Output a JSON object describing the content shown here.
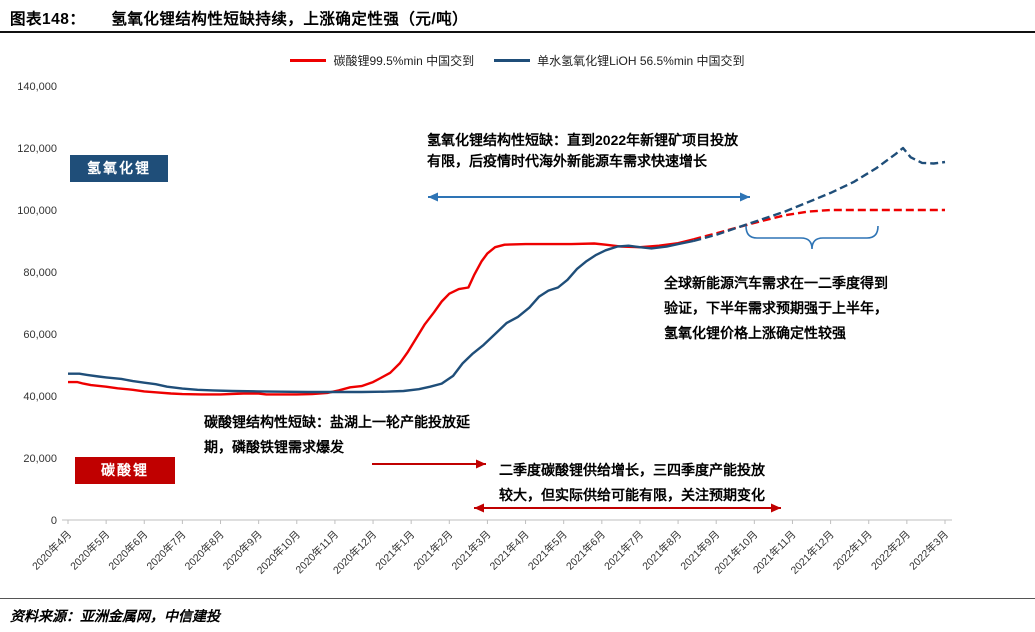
{
  "title": {
    "prefix": "图表148：",
    "text": "氢氧化锂结构性短缺持续，上涨确定性强（元/吨）"
  },
  "legend": [
    {
      "label": "碳酸锂99.5%min 中国交到"
    },
    {
      "label": "单水氢氧化锂LiOH 56.5%min 中国交到"
    }
  ],
  "boxes": {
    "hydroxide": "氢氧化锂",
    "carbonate": "碳酸锂"
  },
  "annotations": {
    "top": "氢氧化锂结构性短缺：直到2022年新锂矿项目投放\n有限，后疫情时代海外新能源车需求快速增长",
    "right": "全球新能源汽车需求在一二季度得到\n验证，下半年需求预期强于上半年，\n氢氧化锂价格上涨确定性较强",
    "carbonate": "碳酸锂结构性短缺：盐湖上一轮产能投放延\n期，磷酸铁锂需求爆发",
    "bottom": "二季度碳酸锂供给增长，三四季度产能投放\n较大，但实际供给可能有限，关注预期变化"
  },
  "footer": "资料来源：亚洲金属网，中信建投",
  "colors": {
    "box_blue": "#1f4e79",
    "box_red": "#c00000",
    "blue_arrow": "#2e74b5",
    "red_arrow": "#c00000",
    "brace": "#2e74b5",
    "axis": "#bfbfbf",
    "tick_text": "#333333"
  },
  "chart_data": {
    "type": "line",
    "title": "氢氧化锂结构性短缺持续，上涨确定性强",
    "unit": "元/吨",
    "ylim": [
      0,
      140000
    ],
    "yticks": [
      0,
      20000,
      40000,
      60000,
      80000,
      100000,
      120000,
      140000
    ],
    "x_months_from": "2020年4月",
    "x_labels": [
      "2020年4月",
      "2020年5月",
      "2020年6月",
      "2020年7月",
      "2020年8月",
      "2020年9月",
      "2020年10月",
      "2020年11月",
      "2020年12月",
      "2021年1月",
      "2021年2月",
      "2021年3月",
      "2021年4月",
      "2021年5月",
      "2021年6月",
      "2021年7月",
      "2021年8月",
      "2021年9月",
      "2021年10月",
      "2021年11月",
      "2021年12月",
      "2022年1月",
      "2022年2月",
      "2022年3月"
    ],
    "legend_position": "top-center",
    "grid": false,
    "series": [
      {
        "name": "碳酸锂99.5%min 中国交到",
        "color": "#ee0000",
        "style_note": "solid history, dashed forecast",
        "solid": [
          [
            0,
            44500
          ],
          [
            0.25,
            44500
          ],
          [
            0.4,
            44000
          ],
          [
            0.6,
            43500
          ],
          [
            1,
            43000
          ],
          [
            1.3,
            42500
          ],
          [
            1.7,
            42000
          ],
          [
            2,
            41500
          ],
          [
            2.3,
            41200
          ],
          [
            2.7,
            40800
          ],
          [
            3,
            40600
          ],
          [
            3.5,
            40500
          ],
          [
            4,
            40500
          ],
          [
            4.6,
            40800
          ],
          [
            5,
            40800
          ],
          [
            5.2,
            40500
          ],
          [
            6,
            40500
          ],
          [
            6.4,
            40600
          ],
          [
            6.8,
            41000
          ],
          [
            7.1,
            41800
          ],
          [
            7.4,
            42800
          ],
          [
            7.7,
            43200
          ],
          [
            8,
            44500
          ],
          [
            8.2,
            45800
          ],
          [
            8.45,
            47500
          ],
          [
            8.7,
            50500
          ],
          [
            8.9,
            54000
          ],
          [
            9.1,
            58000
          ],
          [
            9.35,
            63000
          ],
          [
            9.6,
            67000
          ],
          [
            9.8,
            70500
          ],
          [
            10,
            73000
          ],
          [
            10.25,
            74500
          ],
          [
            10.5,
            75000
          ],
          [
            10.65,
            79000
          ],
          [
            10.85,
            83500
          ],
          [
            11,
            86000
          ],
          [
            11.2,
            88000
          ],
          [
            11.45,
            88800
          ],
          [
            12,
            89000
          ],
          [
            12.6,
            89000
          ],
          [
            13.2,
            89000
          ],
          [
            13.8,
            89200
          ],
          [
            14.1,
            88800
          ],
          [
            14.5,
            88200
          ],
          [
            15,
            88000
          ],
          [
            15.5,
            88500
          ],
          [
            16,
            89300
          ],
          [
            16.4,
            90500
          ]
        ],
        "dashed": [
          [
            16.4,
            90500
          ],
          [
            17,
            92500
          ],
          [
            17.6,
            94500
          ],
          [
            18.2,
            96500
          ],
          [
            18.8,
            98300
          ],
          [
            19.4,
            99500
          ],
          [
            20,
            100000
          ],
          [
            20.8,
            100000
          ],
          [
            21.6,
            100000
          ],
          [
            22.4,
            100000
          ],
          [
            23,
            100000
          ]
        ]
      },
      {
        "name": "单水氢氧化锂LiOH 56.5%min 中国交到",
        "color": "#1f4e79",
        "style_note": "solid history, dashed forecast",
        "solid": [
          [
            0,
            47200
          ],
          [
            0.3,
            47200
          ],
          [
            0.5,
            46800
          ],
          [
            0.8,
            46300
          ],
          [
            1,
            46000
          ],
          [
            1.4,
            45500
          ],
          [
            1.7,
            44800
          ],
          [
            2,
            44300
          ],
          [
            2.3,
            43800
          ],
          [
            2.6,
            43000
          ],
          [
            3,
            42400
          ],
          [
            3.4,
            42000
          ],
          [
            3.8,
            41800
          ],
          [
            4.3,
            41600
          ],
          [
            5,
            41500
          ],
          [
            5.6,
            41400
          ],
          [
            6.3,
            41300
          ],
          [
            7,
            41300
          ],
          [
            7.7,
            41300
          ],
          [
            8.3,
            41400
          ],
          [
            8.8,
            41600
          ],
          [
            9.2,
            42200
          ],
          [
            9.5,
            43000
          ],
          [
            9.8,
            44000
          ],
          [
            10.1,
            46500
          ],
          [
            10.35,
            50500
          ],
          [
            10.6,
            53500
          ],
          [
            10.9,
            56500
          ],
          [
            11.2,
            60000
          ],
          [
            11.5,
            63500
          ],
          [
            11.8,
            65500
          ],
          [
            12.1,
            68500
          ],
          [
            12.35,
            72000
          ],
          [
            12.6,
            74000
          ],
          [
            12.85,
            75000
          ],
          [
            13.1,
            77500
          ],
          [
            13.35,
            81000
          ],
          [
            13.6,
            83500
          ],
          [
            13.85,
            85500
          ],
          [
            14.1,
            87000
          ],
          [
            14.4,
            88200
          ],
          [
            14.7,
            88500
          ],
          [
            15,
            88000
          ],
          [
            15.3,
            87600
          ],
          [
            15.7,
            88200
          ],
          [
            16,
            89000
          ],
          [
            16.4,
            90000
          ]
        ],
        "dashed": [
          [
            16.4,
            90000
          ],
          [
            17,
            92000
          ],
          [
            17.6,
            94500
          ],
          [
            18.2,
            97000
          ],
          [
            18.8,
            99500
          ],
          [
            19.4,
            102500
          ],
          [
            20,
            105500
          ],
          [
            20.6,
            109000
          ],
          [
            21.2,
            113500
          ],
          [
            21.7,
            118000
          ],
          [
            21.9,
            120000
          ],
          [
            22.1,
            117000
          ],
          [
            22.4,
            115200
          ],
          [
            22.7,
            115000
          ],
          [
            23,
            115500
          ]
        ]
      }
    ]
  }
}
